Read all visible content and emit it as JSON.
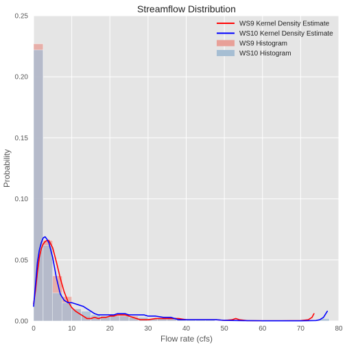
{
  "chart_data": {
    "type": "area",
    "title": "Streamflow Distribution",
    "xlabel": "Flow rate (cfs)",
    "ylabel": "Probability",
    "xlim": [
      0,
      80
    ],
    "ylim": [
      0,
      0.25
    ],
    "xticks": [
      "0",
      "10",
      "20",
      "30",
      "40",
      "50",
      "60",
      "70",
      "80"
    ],
    "yticks": [
      "0.00",
      "0.05",
      "0.10",
      "0.15",
      "0.20",
      "0.25"
    ],
    "grid": true,
    "legend_position": "top-right",
    "histogram_bin_width": 2.5,
    "histograms": [
      {
        "name": "WS9 Histogram",
        "color": "#E8A098",
        "bins": [
          {
            "x0": 0,
            "x1": 2.5,
            "value": 0.227
          },
          {
            "x0": 2.5,
            "x1": 5,
            "value": 0.066
          },
          {
            "x0": 5,
            "x1": 7.5,
            "value": 0.037
          },
          {
            "x0": 7.5,
            "x1": 10,
            "value": 0.02
          },
          {
            "x0": 10,
            "x1": 12.5,
            "value": 0.01
          },
          {
            "x0": 12.5,
            "x1": 15,
            "value": 0.004
          },
          {
            "x0": 15,
            "x1": 17.5,
            "value": 0.003
          },
          {
            "x0": 17.5,
            "x1": 20,
            "value": 0.004
          },
          {
            "x0": 20,
            "x1": 22.5,
            "value": 0.005
          },
          {
            "x0": 22.5,
            "x1": 25,
            "value": 0.006
          },
          {
            "x0": 25,
            "x1": 27.5,
            "value": 0.004
          },
          {
            "x0": 27.5,
            "x1": 30,
            "value": 0.002
          },
          {
            "x0": 30,
            "x1": 32.5,
            "value": 0.002
          },
          {
            "x0": 32.5,
            "x1": 35,
            "value": 0.002
          },
          {
            "x0": 35,
            "x1": 37.5,
            "value": 0.003
          },
          {
            "x0": 37.5,
            "x1": 40,
            "value": 0.002
          },
          {
            "x0": 40,
            "x1": 42.5,
            "value": 0.001
          },
          {
            "x0": 42.5,
            "x1": 45,
            "value": 0.001
          },
          {
            "x0": 45,
            "x1": 47.5,
            "value": 0.001
          },
          {
            "x0": 52.5,
            "x1": 55,
            "value": 0.001
          },
          {
            "x0": 72.5,
            "x1": 75,
            "value": 0.001
          }
        ]
      },
      {
        "name": "WS10 Histogram",
        "color": "#A6BED3",
        "bins": [
          {
            "x0": 0,
            "x1": 2.5,
            "value": 0.222
          },
          {
            "x0": 2.5,
            "x1": 5,
            "value": 0.062
          },
          {
            "x0": 5,
            "x1": 7.5,
            "value": 0.023
          },
          {
            "x0": 7.5,
            "x1": 10,
            "value": 0.015
          },
          {
            "x0": 10,
            "x1": 12.5,
            "value": 0.01
          },
          {
            "x0": 12.5,
            "x1": 15,
            "value": 0.008
          },
          {
            "x0": 15,
            "x1": 17.5,
            "value": 0.005
          },
          {
            "x0": 17.5,
            "x1": 20,
            "value": 0.004
          },
          {
            "x0": 20,
            "x1": 22.5,
            "value": 0.004
          },
          {
            "x0": 22.5,
            "x1": 25,
            "value": 0.004
          },
          {
            "x0": 25,
            "x1": 27.5,
            "value": 0.003
          },
          {
            "x0": 27.5,
            "x1": 30,
            "value": 0.003
          },
          {
            "x0": 30,
            "x1": 32.5,
            "value": 0.002
          },
          {
            "x0": 32.5,
            "x1": 35,
            "value": 0.002
          },
          {
            "x0": 35,
            "x1": 37.5,
            "value": 0.003
          },
          {
            "x0": 37.5,
            "x1": 40,
            "value": 0.001
          },
          {
            "x0": 40,
            "x1": 42.5,
            "value": 0.001
          },
          {
            "x0": 42.5,
            "x1": 45,
            "value": 0.001
          },
          {
            "x0": 45,
            "x1": 47.5,
            "value": 0.001
          },
          {
            "x0": 75,
            "x1": 77.5,
            "value": 0.002
          }
        ]
      }
    ],
    "series": [
      {
        "name": "WS9 Kernel Density Estimate",
        "color": "#FF0000",
        "x": [
          0,
          0.5,
          1,
          1.5,
          2,
          2.5,
          3,
          3.5,
          4,
          5,
          6,
          7,
          8,
          9,
          10,
          11,
          12,
          13,
          14,
          15,
          16,
          17,
          18,
          19,
          20,
          21,
          22,
          23,
          24,
          25,
          26,
          27,
          28,
          29,
          30,
          32,
          34,
          35,
          36,
          38,
          40,
          42,
          44,
          46,
          48,
          50,
          52,
          53,
          54,
          56,
          60,
          65,
          70,
          72,
          73,
          73.5
        ],
        "y": [
          0.014,
          0.025,
          0.04,
          0.052,
          0.059,
          0.063,
          0.065,
          0.066,
          0.066,
          0.06,
          0.048,
          0.035,
          0.024,
          0.016,
          0.011,
          0.008,
          0.006,
          0.004,
          0.002,
          0.002,
          0.003,
          0.002,
          0.003,
          0.003,
          0.004,
          0.004,
          0.005,
          0.005,
          0.005,
          0.004,
          0.003,
          0.002,
          0.001,
          0.001,
          0.001,
          0.002,
          0.002,
          0.002,
          0.002,
          0.002,
          0.001,
          0.001,
          0.001,
          0.001,
          0.001,
          0.0005,
          0.001,
          0.002,
          0.001,
          0.0003,
          0.0002,
          0.0002,
          0.0003,
          0.001,
          0.003,
          0.006
        ]
      },
      {
        "name": "WS10 Kernel Density Estimate",
        "color": "#0000FF",
        "x": [
          0,
          0.5,
          1,
          1.5,
          2,
          2.5,
          3,
          3.5,
          4,
          5,
          6,
          7,
          8,
          9,
          10,
          11,
          12,
          13,
          14,
          15,
          16,
          17,
          18,
          19,
          20,
          21,
          22,
          23,
          24,
          25,
          26,
          27,
          28,
          29,
          30,
          32,
          34,
          35,
          36,
          38,
          40,
          42,
          44,
          46,
          48,
          50,
          55,
          60,
          65,
          70,
          74,
          75,
          76,
          77
        ],
        "y": [
          0.012,
          0.03,
          0.048,
          0.058,
          0.064,
          0.068,
          0.069,
          0.067,
          0.064,
          0.052,
          0.035,
          0.022,
          0.017,
          0.015,
          0.015,
          0.014,
          0.013,
          0.012,
          0.01,
          0.008,
          0.006,
          0.005,
          0.005,
          0.005,
          0.005,
          0.005,
          0.006,
          0.006,
          0.006,
          0.005,
          0.005,
          0.005,
          0.005,
          0.005,
          0.004,
          0.004,
          0.003,
          0.003,
          0.003,
          0.001,
          0.001,
          0.001,
          0.001,
          0.001,
          0.001,
          0.0005,
          0.0003,
          0.0002,
          0.0002,
          0.0002,
          0.0004,
          0.001,
          0.003,
          0.008
        ]
      }
    ],
    "legend": [
      {
        "label": "WS9 Kernel Density Estimate",
        "kind": "line",
        "color": "#FF0000"
      },
      {
        "label": "WS10 Kernel Density Estimate",
        "kind": "line",
        "color": "#0000FF"
      },
      {
        "label": "WS9 Histogram",
        "kind": "patch",
        "color": "#E8A098"
      },
      {
        "label": "WS10 Histogram",
        "kind": "patch",
        "color": "#A6BED3"
      }
    ]
  }
}
